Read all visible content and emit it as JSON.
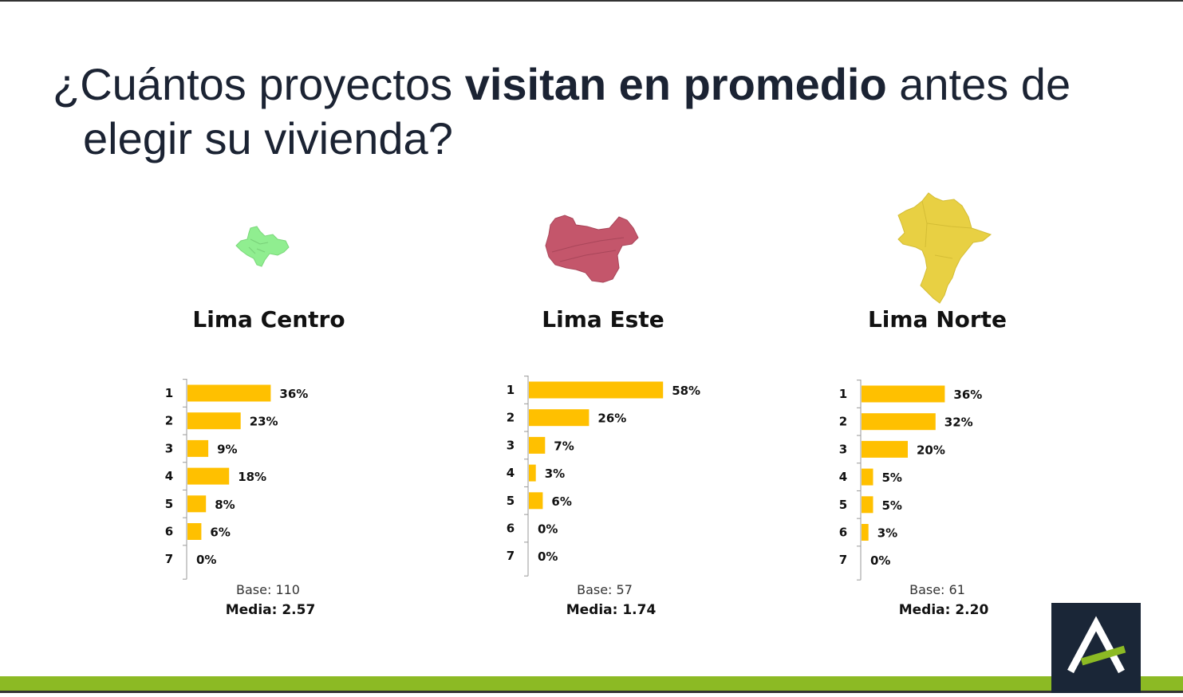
{
  "slide": {
    "title_pre": "¿Cuántos proyectos ",
    "title_bold": "visitan en promedio",
    "title_post": " antes de",
    "title_line2": "elegir su vivienda?"
  },
  "colors": {
    "bar": "#ffc000",
    "centro_map": "#90ee90",
    "este_map": "#c4566b",
    "norte_map": "#e8d043",
    "band": "#8cba24",
    "logo_bg": "#1a2637",
    "logo_accent": "#8cba24"
  },
  "chart_data": [
    {
      "type": "bar",
      "orientation": "horizontal",
      "title": "Lima Centro",
      "categories": [
        "1",
        "2",
        "3",
        "4",
        "5",
        "6",
        "7"
      ],
      "values": [
        36,
        23,
        9,
        18,
        8,
        6,
        0
      ],
      "labels": [
        "36%",
        "23%",
        "9%",
        "18%",
        "8%",
        "6%",
        "0%"
      ],
      "base": "Base: 110",
      "media": "Media: 2.57"
    },
    {
      "type": "bar",
      "orientation": "horizontal",
      "title": "Lima Este",
      "categories": [
        "1",
        "2",
        "3",
        "4",
        "5",
        "6",
        "7"
      ],
      "values": [
        58,
        26,
        7,
        3,
        6,
        0,
        0
      ],
      "labels": [
        "58%",
        "26%",
        "7%",
        "3%",
        "6%",
        "0%",
        "0%"
      ],
      "base": "Base: 57",
      "media": "Media: 1.74"
    },
    {
      "type": "bar",
      "orientation": "horizontal",
      "title": "Lima Norte",
      "categories": [
        "1",
        "2",
        "3",
        "4",
        "5",
        "6",
        "7"
      ],
      "values": [
        36,
        32,
        20,
        5,
        5,
        3,
        0
      ],
      "labels": [
        "36%",
        "32%",
        "20%",
        "5%",
        "5%",
        "3%",
        "0%"
      ],
      "base": "Base: 61",
      "media": "Media: 2.20"
    }
  ]
}
